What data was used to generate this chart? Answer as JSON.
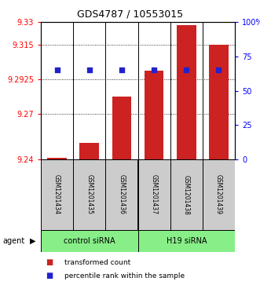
{
  "title": "GDS4787 / 10553015",
  "samples": [
    "GSM1201434",
    "GSM1201435",
    "GSM1201436",
    "GSM1201437",
    "GSM1201438",
    "GSM1201439"
  ],
  "bar_values": [
    9.241,
    9.251,
    9.281,
    9.298,
    9.328,
    9.315
  ],
  "percentile_values": [
    65,
    65,
    65,
    65,
    65,
    65
  ],
  "ymin": 9.24,
  "ymax": 9.33,
  "yticks_left": [
    9.24,
    9.27,
    9.2925,
    9.315,
    9.33
  ],
  "ytick_labels_left": [
    "9.24",
    "9.27",
    "9.2925",
    "9.315",
    "9.33"
  ],
  "yticks_right": [
    0,
    25,
    50,
    75,
    100
  ],
  "ytick_labels_right": [
    "0",
    "25",
    "50",
    "75",
    "100%"
  ],
  "bar_color": "#cc2222",
  "dot_color": "#2222cc",
  "group1_label": "control siRNA",
  "group2_label": "H19 siRNA",
  "group1_indices": [
    0,
    1,
    2
  ],
  "group2_indices": [
    3,
    4,
    5
  ],
  "agent_label": "agent",
  "legend_bar_label": "transformed count",
  "legend_dot_label": "percentile rank within the sample",
  "group_bg_color": "#cccccc",
  "agent_bg_color": "#88ee88",
  "bar_width": 0.6,
  "title_fontsize": 9,
  "tick_fontsize": 7,
  "sample_fontsize": 5.5,
  "group_fontsize": 7,
  "legend_fontsize": 6.5
}
